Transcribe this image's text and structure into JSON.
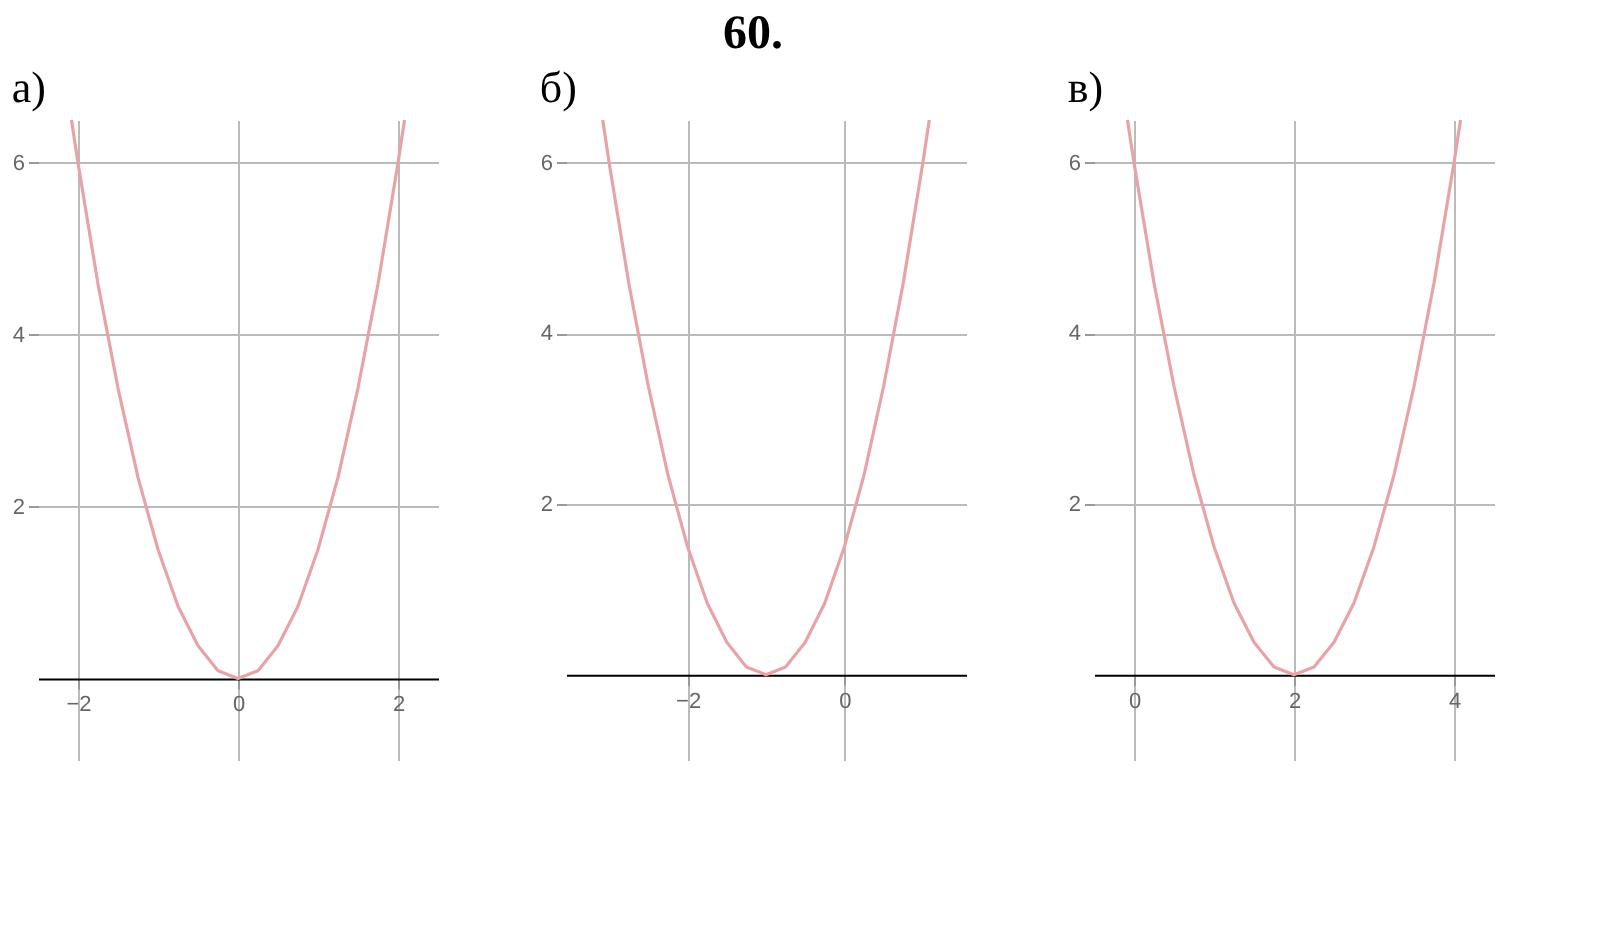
{
  "chart_data": [
    {
      "type": "line",
      "title": "а)",
      "annotations": [
        "60."
      ],
      "x": [
        -2.08,
        -2,
        -1.75,
        -1.5,
        -1.25,
        -1,
        -0.75,
        -0.5,
        -0.25,
        0,
        0.25,
        0.5,
        0.75,
        1,
        1.25,
        1.5,
        1.75,
        2,
        2.08
      ],
      "series": [
        {
          "color": "#e8a3a8",
          "values": [
            6.49,
            6,
            4.59,
            3.38,
            2.34,
            1.5,
            0.84,
            0.38,
            0.09,
            0,
            0.09,
            0.38,
            0.84,
            1.5,
            2.34,
            3.38,
            4.59,
            6,
            6.49
          ]
        }
      ],
      "xlim": [
        -2.5,
        2.5
      ],
      "ylim": [
        -0.95,
        6.5
      ],
      "xticks": [
        -2,
        0,
        2
      ],
      "yticks": [
        2,
        4,
        6
      ],
      "grid": true,
      "marker": "none",
      "line_style": "solid"
    },
    {
      "type": "line",
      "title": "б)",
      "x": [
        -3.08,
        -3,
        -2.75,
        -2.5,
        -2.25,
        -2,
        -1.75,
        -1.5,
        -1.25,
        -1,
        -0.75,
        -0.5,
        -0.25,
        0,
        0.25,
        0.5,
        0.75,
        1,
        1.08
      ],
      "series": [
        {
          "color": "#e8a3a8",
          "values": [
            6.49,
            6,
            4.59,
            3.38,
            2.34,
            1.5,
            0.84,
            0.38,
            0.09,
            0,
            0.09,
            0.38,
            0.84,
            1.5,
            2.34,
            3.38,
            4.59,
            6,
            6.49
          ]
        }
      ],
      "xlim": [
        -3.55,
        1.55
      ],
      "ylim": [
        -1,
        6.5
      ],
      "xticks": [
        -2,
        0
      ],
      "yticks": [
        2,
        4,
        6
      ],
      "grid": true,
      "marker": "none",
      "line_style": "solid"
    },
    {
      "type": "line",
      "title": "в)",
      "x": [
        -0.08,
        0,
        0.25,
        0.5,
        0.75,
        1,
        1.25,
        1.5,
        1.75,
        2,
        2.25,
        2.5,
        2.75,
        3,
        3.25,
        3.5,
        3.75,
        4,
        4.08
      ],
      "series": [
        {
          "color": "#e8a3a8",
          "values": [
            6.49,
            6,
            4.59,
            3.38,
            2.34,
            1.5,
            0.84,
            0.38,
            0.09,
            0,
            0.09,
            0.38,
            0.84,
            1.5,
            2.34,
            3.38,
            4.59,
            6,
            6.49
          ]
        }
      ],
      "xlim": [
        -0.5,
        4.5
      ],
      "ylim": [
        -1,
        6.5
      ],
      "xticks": [
        0,
        2,
        4
      ],
      "yticks": [
        2,
        4,
        6
      ],
      "grid": true,
      "marker": "none",
      "line_style": "solid"
    }
  ]
}
